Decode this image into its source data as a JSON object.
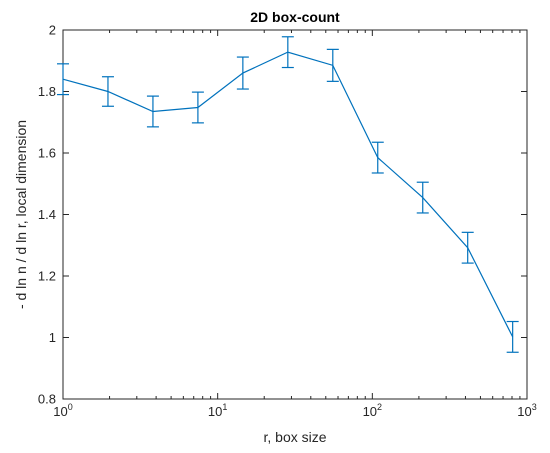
{
  "chart_data": {
    "type": "line",
    "title": "2D box-count",
    "xlabel": "r, box size",
    "ylabel": "- d ln n / d ln r, local dimension",
    "xscale": "log",
    "xlim": [
      1,
      1000
    ],
    "ylim": [
      0.8,
      2
    ],
    "x_tick_labels": [
      {
        "base": "10",
        "exp": "0"
      },
      {
        "base": "10",
        "exp": "1"
      },
      {
        "base": "10",
        "exp": "2"
      },
      {
        "base": "10",
        "exp": "3"
      }
    ],
    "y_ticks": [
      "0.8",
      "1",
      "1.2",
      "1.4",
      "1.6",
      "1.8",
      "2"
    ],
    "grid": false,
    "legend": "none",
    "series": [
      {
        "color": "#0072BD",
        "x": [
          1,
          1.953,
          3.815,
          7.451,
          14.55,
          28.42,
          55.51,
          108.4,
          211.8,
          413.6,
          807.8
        ],
        "y": [
          1.84,
          1.8,
          1.735,
          1.748,
          1.86,
          1.928,
          1.885,
          1.585,
          1.455,
          1.292,
          1.002
        ],
        "error": [
          0.05,
          0.048,
          0.05,
          0.05,
          0.052,
          0.05,
          0.052,
          0.05,
          0.05,
          0.05,
          0.05
        ]
      }
    ]
  }
}
